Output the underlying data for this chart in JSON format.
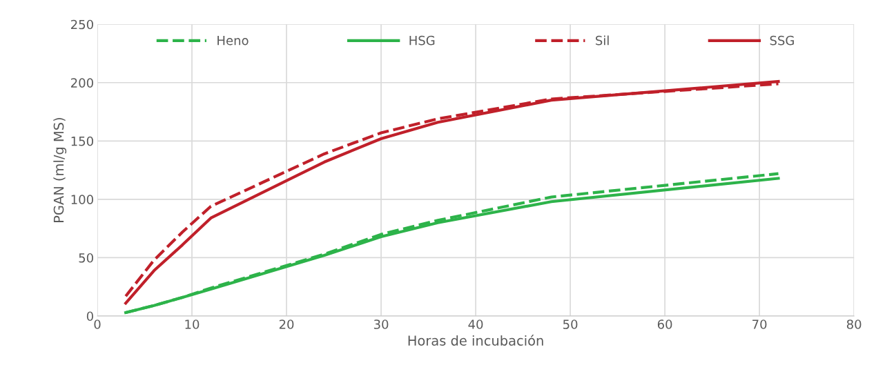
{
  "chart_data": {
    "type": "line",
    "xlabel": "Horas de incubación",
    "ylabel": "PGAN (ml/g MS)",
    "x": [
      3,
      6,
      9,
      12,
      24,
      30,
      36,
      48,
      72
    ],
    "series": [
      {
        "name": "Heno",
        "color": "#2db34a",
        "line_style": "dashed",
        "values": [
          3,
          9,
          16,
          24,
          53,
          70,
          82,
          102,
          122
        ]
      },
      {
        "name": "HSG",
        "color": "#2db34a",
        "line_style": "solid",
        "values": [
          3,
          9,
          16,
          23,
          52,
          68,
          80,
          98,
          118
        ]
      },
      {
        "name": "Sil",
        "color": "#c0202a",
        "line_style": "dashed",
        "values": [
          17,
          48,
          72,
          94,
          139,
          157,
          169,
          186,
          199
        ]
      },
      {
        "name": "SSG",
        "color": "#c0202a",
        "line_style": "solid",
        "values": [
          11,
          39,
          61,
          84,
          132,
          152,
          166,
          185,
          201
        ]
      }
    ],
    "xlim": [
      0,
      80
    ],
    "xticks": [
      0,
      10,
      20,
      30,
      40,
      50,
      60,
      70,
      80
    ],
    "ylim": [
      0,
      250
    ],
    "yticks": [
      0,
      50,
      100,
      150,
      200,
      250
    ],
    "grid": true,
    "legend": "top",
    "marker": "none"
  }
}
